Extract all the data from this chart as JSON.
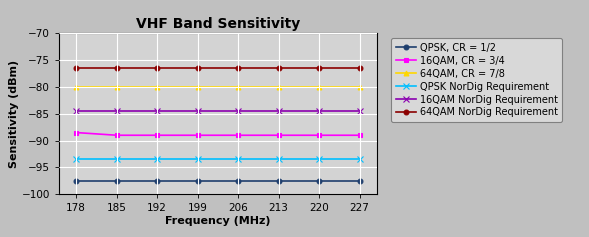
{
  "title": "VHF Band Sensitivity",
  "xlabel": "Frequency (MHz)",
  "ylabel": "Sensitivity (dBm)",
  "x_values": [
    178,
    185,
    192,
    199,
    206,
    213,
    220,
    227
  ],
  "series": [
    {
      "label": "QPSK, CR = 1/2",
      "color": "#1F3F6E",
      "marker": "o",
      "markersize": 3.5,
      "linewidth": 1.2,
      "values": [
        -97.5,
        -97.5,
        -97.5,
        -97.5,
        -97.5,
        -97.5,
        -97.5,
        -97.5
      ]
    },
    {
      "label": "16QAM, CR = 3/4",
      "color": "#FF00FF",
      "marker": "s",
      "markersize": 3.5,
      "linewidth": 1.2,
      "values": [
        -88.5,
        -89.0,
        -89.0,
        -89.0,
        -89.0,
        -89.0,
        -89.0,
        -89.0
      ]
    },
    {
      "label": "64QAM, CR = 7/8",
      "color": "#FFD700",
      "marker": "^",
      "markersize": 3.5,
      "linewidth": 1.2,
      "values": [
        -80.0,
        -80.0,
        -80.0,
        -80.0,
        -80.0,
        -80.0,
        -80.0,
        -80.0
      ]
    },
    {
      "label": "QPSK NorDig Requirement",
      "color": "#00BFFF",
      "marker": "x",
      "markersize": 4.5,
      "linewidth": 1.2,
      "values": [
        -93.5,
        -93.5,
        -93.5,
        -93.5,
        -93.5,
        -93.5,
        -93.5,
        -93.5
      ]
    },
    {
      "label": "16QAM NorDig Requirement",
      "color": "#8B00B0",
      "marker": "x",
      "markersize": 4.5,
      "linewidth": 1.2,
      "values": [
        -84.5,
        -84.5,
        -84.5,
        -84.5,
        -84.5,
        -84.5,
        -84.5,
        -84.5
      ]
    },
    {
      "label": "64QAM NorDig Requirement",
      "color": "#8B0000",
      "marker": "o",
      "markersize": 3.5,
      "linewidth": 1.2,
      "values": [
        -76.5,
        -76.5,
        -76.5,
        -76.5,
        -76.5,
        -76.5,
        -76.5,
        -76.5
      ]
    }
  ],
  "ylim": [
    -100,
    -70
  ],
  "yticks": [
    -100,
    -95,
    -90,
    -85,
    -80,
    -75,
    -70
  ],
  "xlim": [
    175,
    230
  ],
  "xticks": [
    178,
    185,
    192,
    199,
    206,
    213,
    220,
    227
  ],
  "background_color": "#C0C0C0",
  "plot_bg_color": "#D3D3D3",
  "grid_color": "#FFFFFF",
  "title_fontsize": 10,
  "axis_fontsize": 8,
  "tick_fontsize": 7.5,
  "legend_fontsize": 7
}
